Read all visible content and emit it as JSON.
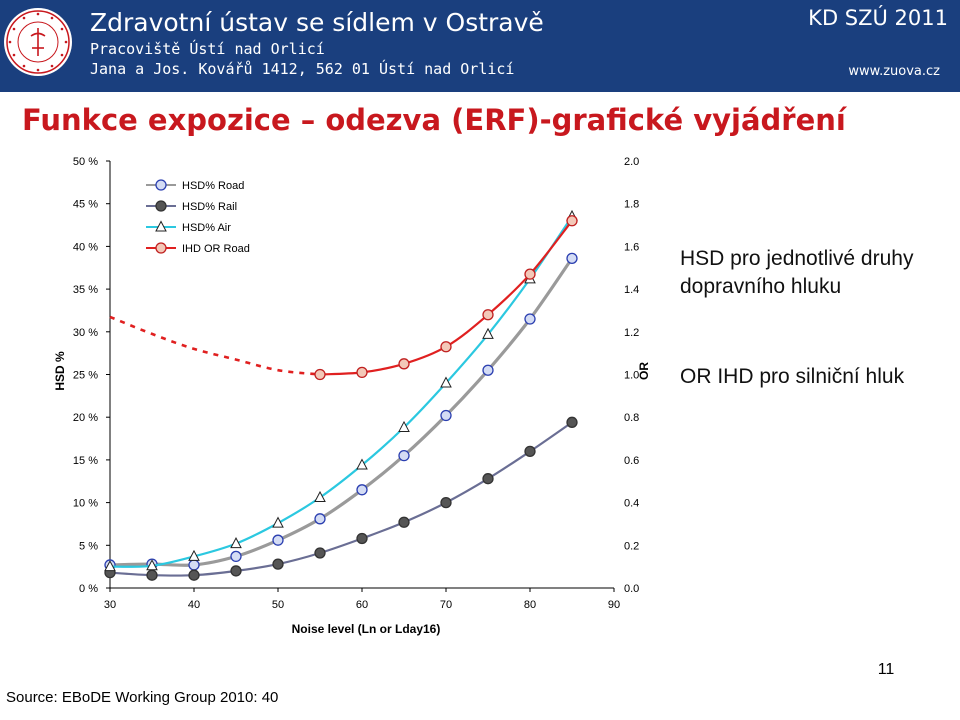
{
  "header": {
    "institution": "Zdravotní ústav se sídlem v Ostravě",
    "address_line1": "Pracoviště Ústí nad Orlicí",
    "address_line2": "Jana a Jos. Kovářů 1412, 562 01 Ústí nad Orlicí",
    "event": "KD SZÚ 2011",
    "website": "www.zuova.cz",
    "colors": {
      "bar": "#1a3f7e",
      "text": "#ffffff"
    }
  },
  "slide": {
    "title": "Funkce expozice – odezva (ERF)-grafické vyjádření",
    "title_color": "#c8181e",
    "note1": "HSD pro jednotlivé druhy dopravního hluku",
    "note2": "OR IHD pro silniční hluk",
    "source": "Source: EBoDE Working Group 2010: 40",
    "page_number": "11"
  },
  "chart_data": {
    "type": "line",
    "xlabel": "Noise level (Ln or Lday16)",
    "ylabel": "HSD %",
    "y2label": "OR",
    "x_ticks": [
      "30",
      "40",
      "50",
      "60",
      "70",
      "80",
      "90"
    ],
    "y_ticks": [
      "0 %",
      "5 %",
      "10 %",
      "15 %",
      "20 %",
      "25 %",
      "30 %",
      "35 %",
      "40 %",
      "45 %",
      "50 %"
    ],
    "y2_ticks": [
      "0.0",
      "0.2",
      "0.4",
      "0.6",
      "0.8",
      "1.0",
      "1.2",
      "1.4",
      "1.6",
      "1.8",
      "2.0"
    ],
    "xlim": [
      30,
      90
    ],
    "ylim": [
      0,
      50
    ],
    "y2lim": [
      0,
      2
    ],
    "legend_position": "top-left",
    "series": [
      {
        "name": "HSD% Road",
        "axis": "left",
        "line_color": "#9a9a9a",
        "marker": "circle",
        "marker_edge": "#2b3fb0",
        "marker_fill": "#d4dcf4",
        "x": [
          30,
          35,
          40,
          45,
          50,
          55,
          60,
          65,
          70,
          75,
          80,
          85
        ],
        "y": [
          2.7,
          2.8,
          2.7,
          3.7,
          5.6,
          8.1,
          11.5,
          15.5,
          20.2,
          25.5,
          31.5,
          38.6
        ]
      },
      {
        "name": "HSD% Rail",
        "axis": "left",
        "line_color": "#6a6e94",
        "marker": "circle",
        "marker_edge": "#333333",
        "marker_fill": "#555555",
        "x": [
          30,
          35,
          40,
          45,
          50,
          55,
          60,
          65,
          70,
          75,
          80,
          85
        ],
        "y": [
          1.8,
          1.5,
          1.5,
          2.0,
          2.8,
          4.1,
          5.8,
          7.7,
          10.0,
          12.8,
          16.0,
          19.4
        ]
      },
      {
        "name": "HSD% Air",
        "axis": "left",
        "line_color": "#2bc8e0",
        "marker": "triangle",
        "marker_edge": "#222222",
        "marker_fill": "#ffffff",
        "x": [
          30,
          35,
          40,
          45,
          50,
          55,
          60,
          65,
          70,
          75,
          80,
          85
        ],
        "y": [
          2.5,
          2.6,
          3.7,
          5.2,
          7.6,
          10.6,
          14.4,
          18.8,
          24.0,
          29.7,
          36.2,
          43.5
        ]
      },
      {
        "name": "IHD OR Road",
        "axis": "right",
        "line_color": "#e02020",
        "marker": "circle",
        "marker_edge": "#c02020",
        "marker_fill": "#f3c8b8",
        "x": [
          55,
          60,
          65,
          70,
          75,
          80,
          85
        ],
        "y": [
          1.0,
          1.01,
          1.05,
          1.13,
          1.28,
          1.47,
          1.72
        ],
        "dashed_x": [
          30,
          35,
          40,
          45,
          50,
          55
        ],
        "dashed_y": [
          1.27,
          1.19,
          1.12,
          1.07,
          1.02,
          1.0
        ]
      }
    ]
  }
}
